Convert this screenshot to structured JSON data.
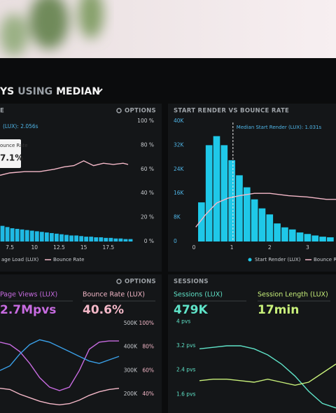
{
  "header": {
    "title": [
      "YS",
      "USING",
      "MEDIAN"
    ]
  },
  "panels": [
    {
      "heading": "E",
      "options": "OPTIONS",
      "annotation": "(LUX): 2.056s",
      "tooltip": {
        "label": "ounce Rate",
        "value": "7.1%"
      },
      "chart": {
        "type": "histogram-line",
        "bins": [
          6.5,
          7,
          7.5,
          8,
          8.5,
          9,
          9.5,
          10,
          10.5,
          11,
          11.5,
          12,
          12.5,
          13,
          13.5,
          14,
          14.5,
          15,
          15.5,
          16,
          16.5,
          17,
          17.5,
          18,
          18.5,
          19,
          19.5,
          20
        ],
        "series": [
          {
            "name": "age Load (LUX)",
            "color": "#1fb9e3",
            "values": [
              13,
              12,
              11,
              10.5,
              10,
              9.5,
              9,
              8.5,
              8,
              7.5,
              7,
              6.5,
              6,
              5.5,
              5,
              5,
              4.5,
              4,
              4,
              3.5,
              3.5,
              3,
              3,
              2.5,
              2.5,
              2,
              2
            ]
          },
          {
            "name": "Bounce Rate",
            "color": "#f4b8c8",
            "x": [
              6.5,
              7.5,
              9,
              10.5,
              12,
              13,
              14,
              15,
              16,
              17,
              18,
              19,
              19.5
            ],
            "values": [
              55,
              57,
              58,
              58,
              60,
              62,
              63,
              67,
              63,
              65,
              64,
              65,
              64
            ]
          }
        ],
        "xlim": [
          6.5,
          20
        ],
        "xticks": [
          7.5,
          10,
          12.5,
          15,
          17.5
        ],
        "ylim": [
          0,
          100
        ],
        "yticks": [
          {
            "value": 100,
            "label": "100 %"
          },
          {
            "value": 80,
            "label": "80 %"
          },
          {
            "value": 60,
            "label": "60 %"
          },
          {
            "value": 40,
            "label": "40 %"
          },
          {
            "value": 20,
            "label": "20 %"
          },
          {
            "value": 0,
            "label": "0 %"
          }
        ]
      }
    },
    {
      "heading": "START RENDER VS BOUNCE RATE",
      "chart": {
        "type": "histogram-line",
        "bins": [
          0.1,
          0.3,
          0.5,
          0.7,
          0.9,
          1.1,
          1.3,
          1.5,
          1.7,
          1.9,
          2.1,
          2.3,
          2.5,
          2.7,
          2.9,
          3.1,
          3.3,
          3.5,
          3.7
        ],
        "series": [
          {
            "name": "Start Render (LUX)",
            "color": "#1fc8e8",
            "values": [
              13000,
              32000,
              35000,
              32000,
              27000,
              22000,
              18000,
              14000,
              11000,
              9000,
              6000,
              4700,
              4000,
              3000,
              2500,
              2000,
              1600,
              1400
            ]
          },
          {
            "name": "Bounce Rate",
            "color": "#f4b8c8",
            "axis": "y2",
            "x": [
              0.05,
              0.3,
              0.6,
              0.9,
              1.2,
              1.6,
              2.0,
              2.5,
              3.0,
              3.5,
              3.75
            ],
            "values": [
              12,
              22,
              32,
              36,
              38,
              40,
              40,
              38,
              37,
              35,
              35
            ]
          }
        ],
        "xlim": [
          0,
          3.75
        ],
        "xticks": [
          0,
          1,
          2,
          3
        ],
        "ylim": [
          0,
          40000
        ],
        "yticks": [
          {
            "value": 40000,
            "label": "40K"
          },
          {
            "value": 32000,
            "label": "32K"
          },
          {
            "value": 24000,
            "label": "24K"
          },
          {
            "value": 16000,
            "label": "16K"
          },
          {
            "value": 8000,
            "label": "8K"
          },
          0
        ],
        "y2lim": [
          0,
          100
        ],
        "annotation": {
          "x": 1.031,
          "label": "Median Start Render (LUX): 1.031s"
        }
      }
    },
    {
      "options": "OPTIONS",
      "metrics": [
        {
          "label": "Page Views (LUX)",
          "value": "2.7Mpvs",
          "color": "#c76be0"
        },
        {
          "label": "Bounce Rate (LUX)",
          "value": "40.6%",
          "color": "#f4b8c8"
        }
      ],
      "chart": {
        "type": "line",
        "series": [
          {
            "color": "#c76be0",
            "values": [
              420000,
              410000,
              380000,
              330000,
              270000,
              230000,
              215000,
              230000,
              300000,
              390000,
              420000,
              425000,
              425000
            ]
          },
          {
            "color": "#3aa0e8",
            "values": [
              300000,
              320000,
              370000,
              410000,
              430000,
              420000,
              400000,
              380000,
              360000,
              340000,
              330000,
              345000,
              360000
            ]
          },
          {
            "color": "#f4b8c8",
            "axis": "y2",
            "values": [
              45,
              44,
              40,
              37,
              34,
              32,
              31,
              32,
              35,
              39,
              42,
              44,
              45
            ]
          }
        ],
        "ylim": [
          150000,
          520000
        ],
        "yticks": [
          {
            "value": 500000,
            "label": "500K"
          },
          {
            "value": 400000,
            "label": "400K"
          },
          {
            "value": 300000,
            "label": "300K"
          },
          {
            "value": 200000,
            "label": "200K"
          }
        ],
        "y2lim": [
          30,
          104
        ],
        "y2ticks": [
          {
            "value": 100,
            "label": "100%"
          },
          {
            "value": 80,
            "label": "80%"
          },
          {
            "value": 60,
            "label": "60%"
          },
          {
            "value": 40,
            "label": "40%"
          }
        ]
      }
    },
    {
      "heading": "SESSIONS",
      "metrics": [
        {
          "label": "Sessions (LUX)",
          "value": "479K",
          "color": "#5fe3c8"
        },
        {
          "label": "Session Length (LUX)",
          "value": "17min",
          "color": "#c8f07a"
        }
      ],
      "chart": {
        "type": "line",
        "series": [
          {
            "color": "#5fe3c8",
            "values": [
              3.1,
              3.15,
              3.2,
              3.2,
              3.1,
              2.9,
              2.6,
              2.2,
              1.7,
              1.3,
              1.15
            ]
          },
          {
            "color": "#c8f07a",
            "values": [
              2.05,
              2.1,
              2.1,
              2.05,
              2.0,
              2.1,
              2.0,
              1.9,
              2.0,
              2.3,
              2.6
            ]
          }
        ],
        "ylim": [
          1.1,
          4.1
        ],
        "yticks": [
          {
            "value": 4,
            "label": "4 pvs"
          },
          {
            "value": 3.2,
            "label": "3.2 pvs"
          },
          {
            "value": 2.4,
            "label": "2.4 pvs"
          },
          {
            "value": 1.6,
            "label": "1.6 pvs"
          }
        ]
      }
    }
  ]
}
